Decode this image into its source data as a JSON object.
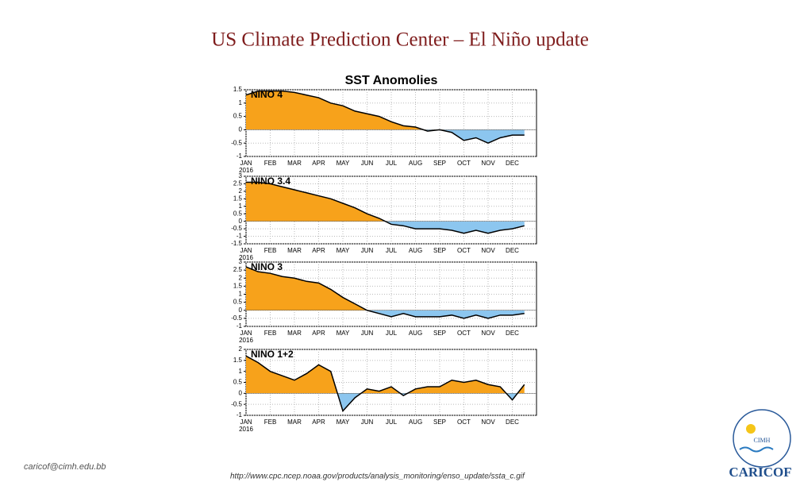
{
  "slide": {
    "title": "US Climate Prediction Center – El Niño update",
    "email": "caricof@cimh.edu.bb",
    "url": "http://www.cpc.ncep.noaa.gov/products/analysis_monitoring/enso_update/ssta_c.gif",
    "logo_top": "CIMH",
    "logo_bottom": "CARICOF",
    "figure_title": "SST Anomolies"
  },
  "chart_data": [
    {
      "type": "area-line",
      "label": "NINO 4",
      "year_label": "2016",
      "categories": [
        "JAN",
        null,
        "FEB",
        null,
        "MAR",
        null,
        "APR",
        null,
        "MAY",
        null,
        "JUN",
        null,
        "JUL",
        null,
        "AUG",
        null,
        "SEP",
        null,
        "OCT",
        null,
        "NOV",
        null,
        "DEC",
        null
      ],
      "values": [
        1.3,
        1.45,
        1.45,
        1.45,
        1.4,
        1.3,
        1.2,
        1.0,
        0.9,
        0.7,
        0.6,
        0.5,
        0.3,
        0.15,
        0.1,
        -0.05,
        0,
        -0.1,
        -0.4,
        -0.3,
        -0.5,
        -0.3,
        -0.2,
        -0.2
      ],
      "ylim": [
        -1,
        1.5
      ],
      "yticks": [
        -1,
        -0.5,
        0,
        0.5,
        1,
        1.5
      ],
      "grid": true,
      "color": "#000000",
      "fill_positive": "#f7a21b",
      "fill_negative": "#8cc6ef"
    },
    {
      "type": "area-line",
      "label": "NINO 3.4",
      "year_label": "2016",
      "categories": [
        "JAN",
        null,
        "FEB",
        null,
        "MAR",
        null,
        "APR",
        null,
        "MAY",
        null,
        "JUN",
        null,
        "JUL",
        null,
        "AUG",
        null,
        "SEP",
        null,
        "OCT",
        null,
        "NOV",
        null,
        "DEC",
        null
      ],
      "values": [
        2.6,
        2.6,
        2.5,
        2.3,
        2.1,
        1.9,
        1.7,
        1.5,
        1.2,
        0.9,
        0.5,
        0.2,
        -0.2,
        -0.3,
        -0.5,
        -0.5,
        -0.5,
        -0.6,
        -0.8,
        -0.6,
        -0.8,
        -0.6,
        -0.5,
        -0.3
      ],
      "ylim": [
        -1.5,
        3
      ],
      "yticks": [
        -1.5,
        -1,
        -0.5,
        0,
        0.5,
        1,
        1.5,
        2,
        2.5,
        3
      ],
      "grid": true,
      "color": "#000000",
      "fill_positive": "#f7a21b",
      "fill_negative": "#8cc6ef"
    },
    {
      "type": "area-line",
      "label": "NINO 3",
      "year_label": "2016",
      "categories": [
        "JAN",
        null,
        "FEB",
        null,
        "MAR",
        null,
        "APR",
        null,
        "MAY",
        null,
        "JUN",
        null,
        "JUL",
        null,
        "AUG",
        null,
        "SEP",
        null,
        "OCT",
        null,
        "NOV",
        null,
        "DEC",
        null
      ],
      "values": [
        2.7,
        2.4,
        2.3,
        2.1,
        2.0,
        1.8,
        1.7,
        1.3,
        0.8,
        0.4,
        0,
        -0.2,
        -0.4,
        -0.2,
        -0.4,
        -0.4,
        -0.4,
        -0.3,
        -0.5,
        -0.3,
        -0.5,
        -0.3,
        -0.3,
        -0.2
      ],
      "ylim": [
        -1,
        3
      ],
      "yticks": [
        -1,
        -0.5,
        0,
        0.5,
        1,
        1.5,
        2,
        2.5,
        3
      ],
      "grid": true,
      "color": "#000000",
      "fill_positive": "#f7a21b",
      "fill_negative": "#8cc6ef"
    },
    {
      "type": "area-line",
      "label": "NINO 1+2",
      "year_label": "2016",
      "categories": [
        "JAN",
        null,
        "FEB",
        null,
        "MAR",
        null,
        "APR",
        null,
        "MAY",
        null,
        "JUN",
        null,
        "JUL",
        null,
        "AUG",
        null,
        "SEP",
        null,
        "OCT",
        null,
        "NOV",
        null,
        "DEC",
        null
      ],
      "values": [
        1.7,
        1.4,
        1.0,
        0.8,
        0.6,
        0.9,
        1.3,
        1.0,
        -0.8,
        -0.2,
        0.2,
        0.1,
        0.3,
        -0.1,
        0.2,
        0.3,
        0.3,
        0.6,
        0.5,
        0.6,
        0.4,
        0.3,
        -0.3,
        0.4
      ],
      "ylim": [
        -1,
        2
      ],
      "yticks": [
        -1,
        -0.5,
        0,
        0.5,
        1,
        1.5,
        2
      ],
      "grid": true,
      "color": "#000000",
      "fill_positive": "#f7a21b",
      "fill_negative": "#8cc6ef"
    }
  ]
}
